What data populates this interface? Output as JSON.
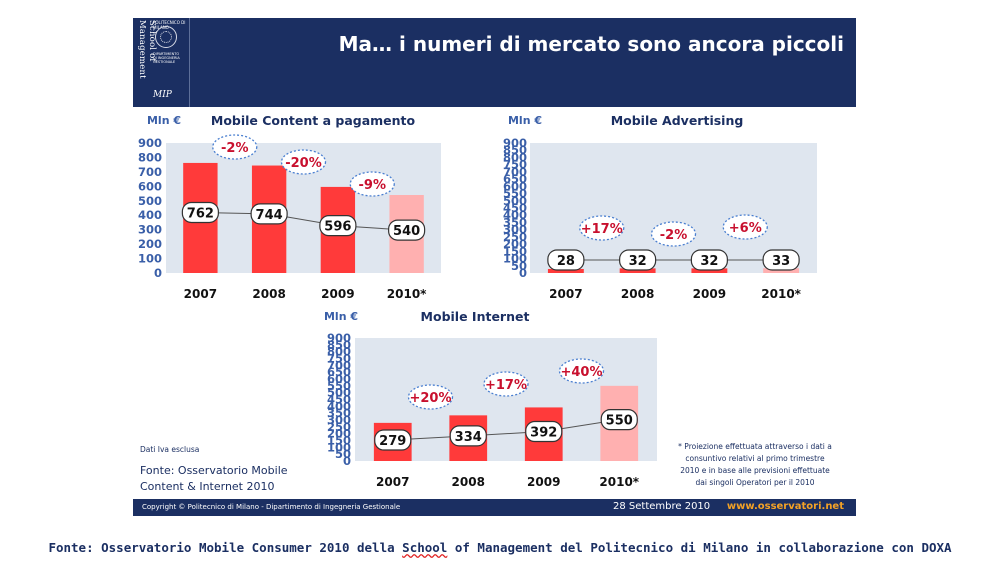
{
  "header": {
    "title": "Ma… i numeri di mercato sono ancora piccoli",
    "school": "School of Management",
    "institution": "POLITECNICO DI MILANO",
    "department_lines": [
      "DIPARTIMENTO",
      "DI INGEGNERIA",
      "GESTIONALE"
    ],
    "mip_logo": "MIP"
  },
  "chart_data": [
    {
      "type": "bar",
      "title": "Mobile Content a pagamento",
      "ylabel": "Mln €",
      "ylim": [
        0,
        900
      ],
      "yticks": [
        0,
        100,
        200,
        300,
        400,
        500,
        600,
        700,
        800,
        900
      ],
      "categories": [
        "2007",
        "2008",
        "2009",
        "2010*"
      ],
      "values": [
        762,
        744,
        596,
        540
      ],
      "value_labels": [
        "762",
        "744",
        "596",
        "540"
      ],
      "growth": [
        "-2%",
        "-20%",
        "-9%"
      ],
      "projected_last": true
    },
    {
      "type": "bar",
      "title": "Mobile Advertising",
      "ylabel": "Mln €",
      "ylim": [
        0,
        900
      ],
      "yticks": [
        0,
        50,
        100,
        150,
        200,
        250,
        300,
        350,
        400,
        450,
        500,
        550,
        600,
        650,
        700,
        750,
        800,
        850,
        900
      ],
      "categories": [
        "2007",
        "2008",
        "2009",
        "2010*"
      ],
      "values": [
        28,
        32,
        32,
        33
      ],
      "value_labels": [
        "28",
        "32",
        "32",
        "33"
      ],
      "growth": [
        "+17%",
        "-2%",
        "+6%"
      ],
      "projected_last": true
    },
    {
      "type": "bar",
      "title": "Mobile Internet",
      "ylabel": "Mln €",
      "ylim": [
        0,
        900
      ],
      "yticks": [
        0,
        50,
        100,
        150,
        200,
        250,
        300,
        350,
        400,
        450,
        500,
        550,
        600,
        650,
        700,
        750,
        800,
        850,
        900
      ],
      "categories": [
        "2007",
        "2008",
        "2009",
        "2010*"
      ],
      "values": [
        279,
        334,
        392,
        550
      ],
      "value_labels": [
        "279",
        "334",
        "392",
        "550"
      ],
      "growth": [
        "+20%",
        "+17%",
        "+40%"
      ],
      "projected_last": true
    }
  ],
  "notes": {
    "vat": "Dati Iva esclusa",
    "source_line1": "Fonte: Osservatorio Mobile",
    "source_line2": "Content & Internet 2010",
    "footnote_lines": [
      "* Proiezione effettuata attraverso i dati a",
      "consuntivo relativi al primo trimestre",
      "2010 e in base alle previsioni effettuate",
      "dai singoli Operatori per il 2010"
    ]
  },
  "footer": {
    "copyright": "Copyright © Politecnico di Milano - Dipartimento di Ingegneria Gestionale",
    "date": "28 Settembre 2010",
    "site": "www.osservatori.net"
  },
  "caption": {
    "before": "Fonte: Osservatorio Mobile Consumer 2010 della ",
    "school": "School",
    "after": " of Management del Politecnico di Milano in collaborazione con DOXA"
  },
  "colors": {
    "navy": "#1b2f62",
    "bar_red": "#ff3a3a",
    "bar_pink": "#ffb0b0",
    "panel_bg": "#dfe6ef",
    "growth_red": "#c8102e",
    "ylabel_blue": "#3a5fa8",
    "site_orange": "#f3a226"
  }
}
